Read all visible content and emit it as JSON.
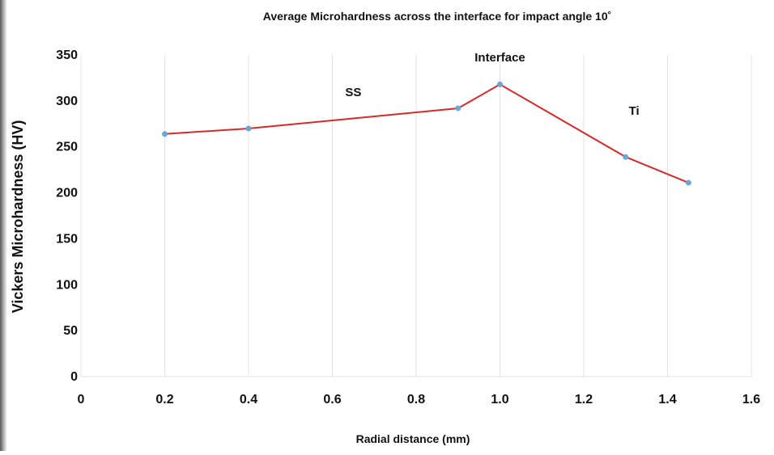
{
  "chart_data": {
    "type": "line",
    "title": "Average Microhardness across the interface for impact angle 10˚",
    "xlabel": "Radial distance (mm)",
    "ylabel": "Vickers Microhardness  (HV)",
    "xlim": [
      0,
      1.6
    ],
    "ylim": [
      0,
      350
    ],
    "xticks": [
      0,
      0.2,
      0.4,
      0.6,
      0.8,
      1.0,
      1.2,
      1.4,
      1.6
    ],
    "xtick_labels": [
      "0",
      "0.2",
      "0.4",
      "0.6",
      "0.8",
      "1.0",
      "1.2",
      "1.4",
      "1.6"
    ],
    "yticks": [
      0,
      50,
      100,
      150,
      200,
      250,
      300,
      350
    ],
    "ytick_labels": [
      "0",
      "50",
      "100",
      "150",
      "200",
      "250",
      "300",
      "350"
    ],
    "grid": "vertical",
    "series": [
      {
        "x": [
          0.2,
          0.4,
          0.9,
          1.0,
          1.3,
          1.45
        ],
        "values": [
          264,
          270,
          292,
          318,
          239,
          211
        ],
        "line_color": "#d62a2a",
        "marker_color": "#6aa6d6"
      }
    ],
    "annotations": [
      {
        "text": "SS",
        "x": 0.65,
        "y": 305
      },
      {
        "text": "Interface",
        "x": 1.0,
        "y": 343
      },
      {
        "text": "Ti",
        "x": 1.32,
        "y": 285
      }
    ]
  }
}
